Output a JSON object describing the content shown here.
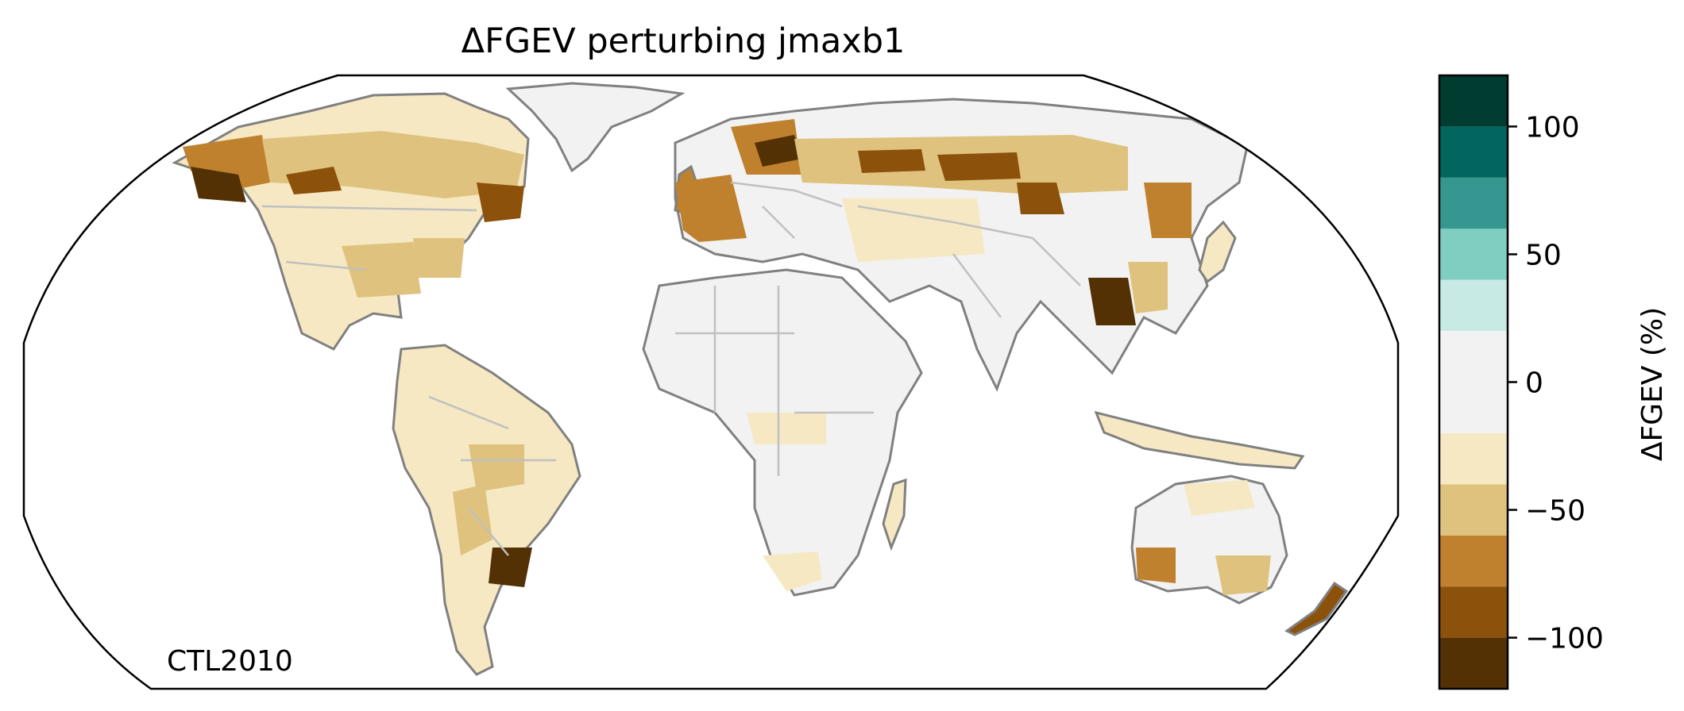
{
  "title": "ΔFGEV perturbing jmaxb1",
  "annotation": "CTL2010",
  "colorbar": {
    "label": "ΔFGEV (%)",
    "range": [
      -120,
      120
    ],
    "levels": [
      -120,
      -100,
      -80,
      -60,
      -40,
      -20,
      20,
      40,
      60,
      80,
      100,
      120
    ],
    "colors": [
      "#543005",
      "#8c510a",
      "#bf812d",
      "#dfc27d",
      "#f6e8c3",
      "#f2f2f2",
      "#c7eae5",
      "#80cdc1",
      "#35978f",
      "#01665e",
      "#003c30"
    ],
    "ticks": [
      {
        "value": 100,
        "label": "100"
      },
      {
        "value": 50,
        "label": "50"
      },
      {
        "value": 0,
        "label": "0"
      },
      {
        "value": -50,
        "label": "−50"
      },
      {
        "value": -100,
        "label": "−100"
      }
    ]
  },
  "map": {
    "projection": "Robinson",
    "colors": {
      "strong_decrease": "#543005",
      "decrease": "#8c510a",
      "moderate_decrease": "#bf812d",
      "slight_decrease": "#dfc27d",
      "minor_decrease": "#f6e8c3",
      "near_zero": "#f2f2f2",
      "coastline": "#808080",
      "borders": "#c0c0c0",
      "outline": "#000000"
    }
  }
}
